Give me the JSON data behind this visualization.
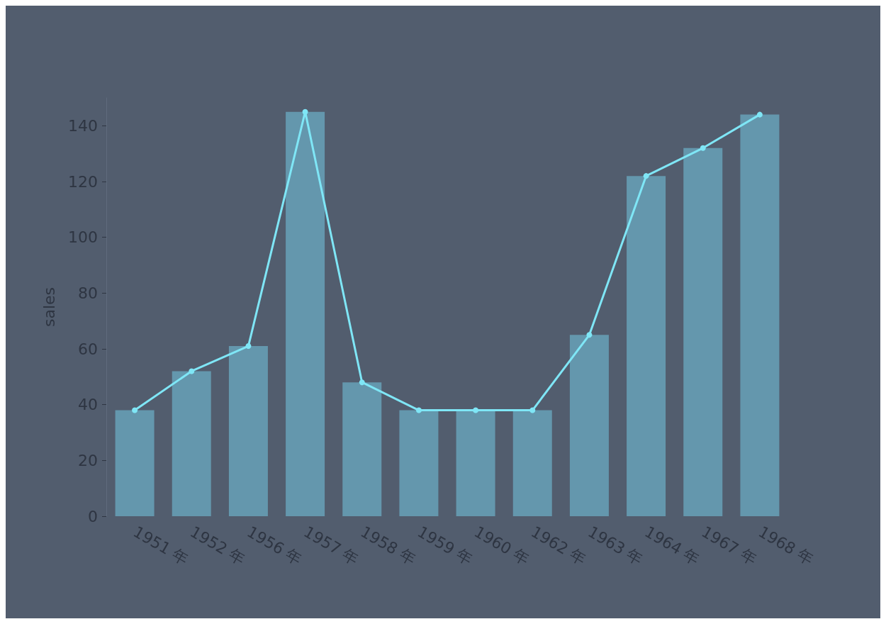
{
  "chart_data": {
    "type": "bar",
    "ylabel": "sales",
    "categories": [
      "1951 年",
      "1952 年",
      "1956 年",
      "1957 年",
      "1958 年",
      "1959 年",
      "1960 年",
      "1962 年",
      "1963 年",
      "1964 年",
      "1967 年",
      "1968 年"
    ],
    "series": [
      {
        "type": "bar",
        "color": "#6497ad",
        "values": [
          38,
          52,
          61,
          145,
          48,
          38,
          38,
          38,
          65,
          122,
          132,
          144
        ]
      },
      {
        "type": "line",
        "color": "#7fe6f6",
        "values": [
          38,
          52,
          61,
          145,
          48,
          38,
          38,
          38,
          65,
          122,
          132,
          144
        ]
      }
    ],
    "ylim": [
      0,
      150
    ],
    "yticks": [
      0,
      20,
      40,
      60,
      80,
      100,
      120,
      140
    ],
    "grid": false,
    "marker": "circle",
    "line_style": "solid"
  }
}
